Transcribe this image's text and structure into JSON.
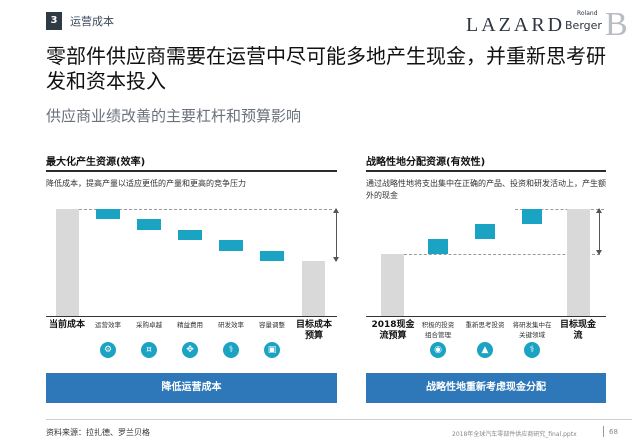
{
  "header": {
    "section_number": "3",
    "section_label": "运营成本",
    "logo_lazard": "LAZARD",
    "logo_rb_roland": "Roland",
    "logo_rb_berger": "Berger",
    "logo_rb_mark": "B"
  },
  "headline": "零部件供应商需要在运营中尽可能多地产生现金，并重新思考研发和资本投入",
  "subtitle": "供应商业绩改善的主要杠杆和预算影响",
  "colors": {
    "accent": "#1aa3c3",
    "bar_gray": "#d9d9d9",
    "cta_blue": "#2e77b9",
    "ink": "#2f3a47"
  },
  "left_panel": {
    "title": "最大化产生资源(效率)",
    "description": "降低成本，提高产量以适应更低的产量和更高的竞争压力",
    "start_label": "当前成本",
    "end_label": "目标成本预算",
    "steps": [
      {
        "label": "运营效率",
        "icon": "gear-icon"
      },
      {
        "label": "采购卓越",
        "icon": "piggy-bank-icon"
      },
      {
        "label": "精益费用",
        "icon": "arrows-icon"
      },
      {
        "label": "研发效率",
        "icon": "microscope-icon"
      },
      {
        "label": "容量调整",
        "icon": "factory-icon"
      }
    ],
    "cta": "降低运营成本"
  },
  "right_panel": {
    "title": "战略性地分配资源(有效性)",
    "description": "通过战略性地将支出集中在正确的产品、投资和研发活动上，产生额外的现金",
    "start_label": "2018现金流预算",
    "end_label": "目标现金流",
    "steps": [
      {
        "label": "积极的投资组合管理",
        "icon": "portfolio-icon"
      },
      {
        "label": "重新思考投资",
        "icon": "invest-icon"
      },
      {
        "label": "将研发集中在关键领域",
        "icon": "microscope-icon"
      }
    ],
    "cta": "战略性地重新考虑现金分配"
  },
  "footer": {
    "source": "资料来源：拉扎德、罗兰贝格",
    "filename": "2018年全球汽车零部件供应商研究_final.pptx",
    "page": "68"
  }
}
